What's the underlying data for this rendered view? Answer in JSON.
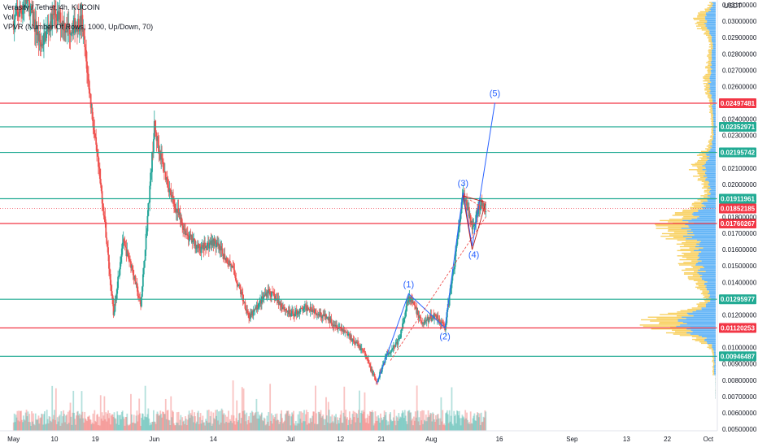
{
  "header": {
    "symbol_line": "Verasity / Tether, 4h, KUCOIN",
    "vol_label": "Vol",
    "vpvr_label": "VPVR (Number Of Rows, 1000, Up/Down, 70)"
  },
  "chart_data": {
    "type": "candlestick",
    "title": "Verasity / Tether, 4h, KUCOIN",
    "currency": "USDT",
    "y_range": [
      0.0049,
      0.0313
    ],
    "y_ticks": [
      {
        "value": 0.031,
        "label": "0.03100000"
      },
      {
        "value": 0.03,
        "label": "0.03000000"
      },
      {
        "value": 0.029,
        "label": "0.02900000"
      },
      {
        "value": 0.028,
        "label": "0.02800000"
      },
      {
        "value": 0.027,
        "label": "0.02700000"
      },
      {
        "value": 0.026,
        "label": "0.02600000"
      },
      {
        "value": 0.024,
        "label": "0.02400000"
      },
      {
        "value": 0.023,
        "label": "0.02300000"
      },
      {
        "value": 0.021,
        "label": "0.02100000"
      },
      {
        "value": 0.02,
        "label": "0.02000000"
      },
      {
        "value": 0.018,
        "label": "0.01800000"
      },
      {
        "value": 0.017,
        "label": "0.01700000"
      },
      {
        "value": 0.016,
        "label": "0.01600000"
      },
      {
        "value": 0.015,
        "label": "0.01500000"
      },
      {
        "value": 0.014,
        "label": "0.01400000"
      },
      {
        "value": 0.012,
        "label": "0.01200000"
      },
      {
        "value": 0.01,
        "label": "0.01000000"
      },
      {
        "value": 0.009,
        "label": "0.00900000"
      },
      {
        "value": 0.008,
        "label": "0.00800000"
      },
      {
        "value": 0.007,
        "label": "0.00700000"
      },
      {
        "value": 0.006,
        "label": "0.00600000"
      },
      {
        "value": 0.005,
        "label": "0.00500000"
      }
    ],
    "x_ticks": [
      {
        "date": "2021-05-01",
        "label": "May"
      },
      {
        "date": "2021-05-10",
        "label": "10"
      },
      {
        "date": "2021-05-19",
        "label": "19"
      },
      {
        "date": "2021-06-01",
        "label": "Jun"
      },
      {
        "date": "2021-06-14",
        "label": "14"
      },
      {
        "date": "2021-07-01",
        "label": "Jul"
      },
      {
        "date": "2021-07-12",
        "label": "12"
      },
      {
        "date": "2021-07-21",
        "label": "21"
      },
      {
        "date": "2021-08-01",
        "label": "Aug"
      },
      {
        "date": "2021-08-16",
        "label": "16"
      },
      {
        "date": "2021-09-01",
        "label": "Sep"
      },
      {
        "date": "2021-09-13",
        "label": "13"
      },
      {
        "date": "2021-09-22",
        "label": "22"
      },
      {
        "date": "2021-10-01",
        "label": "Oct"
      }
    ],
    "x_range": [
      "2021-04-28",
      "2021-10-03"
    ],
    "price_series": [
      [
        "2021-05-01",
        0.03
      ],
      [
        "2021-05-04",
        0.0313
      ],
      [
        "2021-05-07",
        0.0285
      ],
      [
        "2021-05-10",
        0.0305
      ],
      [
        "2021-05-13",
        0.0295
      ],
      [
        "2021-05-16",
        0.03
      ],
      [
        "2021-05-19",
        0.0225
      ],
      [
        "2021-05-21",
        0.018
      ],
      [
        "2021-05-23",
        0.012
      ],
      [
        "2021-05-25",
        0.0165
      ],
      [
        "2021-05-27",
        0.015
      ],
      [
        "2021-05-29",
        0.0125
      ],
      [
        "2021-06-01",
        0.0235
      ],
      [
        "2021-06-03",
        0.021
      ],
      [
        "2021-06-05",
        0.019
      ],
      [
        "2021-06-08",
        0.017
      ],
      [
        "2021-06-11",
        0.016
      ],
      [
        "2021-06-14",
        0.0165
      ],
      [
        "2021-06-18",
        0.015
      ],
      [
        "2021-06-22",
        0.0118
      ],
      [
        "2021-06-26",
        0.0135
      ],
      [
        "2021-07-01",
        0.012
      ],
      [
        "2021-07-05",
        0.0125
      ],
      [
        "2021-07-09",
        0.0118
      ],
      [
        "2021-07-13",
        0.011
      ],
      [
        "2021-07-17",
        0.0098
      ],
      [
        "2021-07-20",
        0.0078
      ],
      [
        "2021-07-22",
        0.0095
      ],
      [
        "2021-07-25",
        0.0105
      ],
      [
        "2021-07-27",
        0.0132
      ],
      [
        "2021-07-30",
        0.0115
      ],
      [
        "2021-08-02",
        0.012
      ],
      [
        "2021-08-04",
        0.0112
      ],
      [
        "2021-08-06",
        0.015
      ],
      [
        "2021-08-08",
        0.0194
      ],
      [
        "2021-08-10",
        0.0175
      ],
      [
        "2021-08-12",
        0.0188
      ],
      [
        "2021-08-13",
        0.0183
      ]
    ],
    "horizontal_levels": [
      {
        "value": 0.02497481,
        "label": "0.02497481",
        "color": "#f23645"
      },
      {
        "value": 0.02352971,
        "label": "0.02352971",
        "color": "#22ab94"
      },
      {
        "value": 0.02195742,
        "label": "0.02195742",
        "color": "#22ab94"
      },
      {
        "value": 0.01911961,
        "label": "0.01911961",
        "color": "#22ab94"
      },
      {
        "value": 0.01760267,
        "label": "0.01760267",
        "color": "#f23645"
      },
      {
        "value": 0.01295977,
        "label": "0.01295977",
        "color": "#22ab94"
      },
      {
        "value": 0.01120253,
        "label": "0.01120253",
        "color": "#f23645"
      },
      {
        "value": 0.00946487,
        "label": "0.00946487",
        "color": "#22ab94"
      }
    ],
    "last_price": {
      "value": 0.01852185,
      "label": "0.01852185",
      "color": "#f23645"
    },
    "elliott_waves": [
      {
        "label": "(1)",
        "date": "2021-07-27",
        "value": 0.0133
      },
      {
        "label": "(2)",
        "date": "2021-08-04",
        "value": 0.0112
      },
      {
        "label": "(3)",
        "date": "2021-08-08",
        "value": 0.0195
      },
      {
        "label": "(4)",
        "date": "2021-08-10",
        "value": 0.0162
      },
      {
        "label": "(5)",
        "date": "2021-08-15",
        "value": 0.025
      }
    ]
  },
  "colors": {
    "up": "#26a69a",
    "down": "#ef5350",
    "vp_up": "#42a5f5",
    "vp_down": "#f7c948",
    "wave": "#2962ff"
  }
}
